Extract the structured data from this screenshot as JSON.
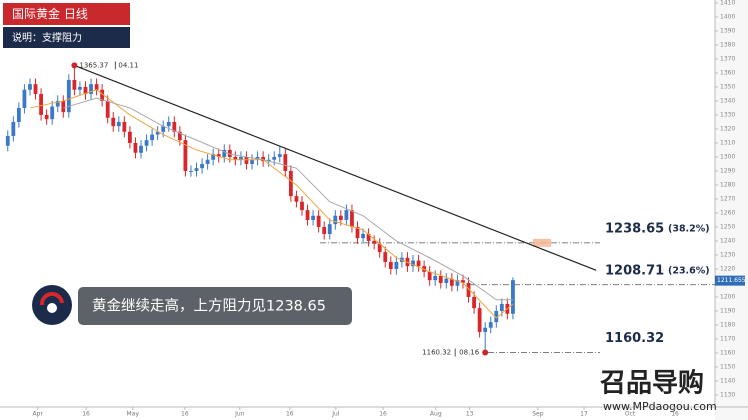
{
  "chart_data": {
    "type": "candlestick",
    "title": "国际黄金  日线",
    "subtitle": "说明：支撑阻力",
    "callout": "黄金继续走高，上方阻力见1238.65",
    "watermark": {
      "brand": "召品导购",
      "url": "www.MPdaogou.com"
    },
    "up_color": "#3a78c9",
    "down_color": "#d9262b",
    "open": [
      1308,
      1315,
      1325,
      1335,
      1348,
      1352,
      1345,
      1330,
      1327,
      1336,
      1340,
      1332,
      1355,
      1348,
      1350,
      1345,
      1352,
      1348,
      1340,
      1328,
      1322,
      1325,
      1318,
      1310,
      1303,
      1308,
      1312,
      1316,
      1318,
      1322,
      1325,
      1318,
      1312,
      1290,
      1290,
      1292,
      1295,
      1298,
      1302,
      1300,
      1305,
      1300,
      1298,
      1300,
      1295,
      1298,
      1300,
      1297,
      1298,
      1300,
      1302,
      1290,
      1272,
      1268,
      1262,
      1255,
      1258,
      1250,
      1245,
      1252,
      1258,
      1255,
      1262,
      1250,
      1242,
      1245,
      1240,
      1238,
      1232,
      1225,
      1220,
      1225,
      1228,
      1222,
      1226,
      1222,
      1218,
      1212,
      1215,
      1210,
      1213,
      1208,
      1212,
      1210,
      1200,
      1192,
      1175,
      1178,
      1182,
      1190,
      1195,
      1188
    ],
    "high": [
      1319,
      1329,
      1339,
      1352,
      1356,
      1356,
      1349,
      1334,
      1340,
      1344,
      1344,
      1359,
      1365.37,
      1354,
      1354,
      1356,
      1356,
      1352,
      1344,
      1332,
      1329,
      1329,
      1322,
      1314,
      1312,
      1316,
      1320,
      1322,
      1326,
      1329,
      1329,
      1322,
      1316,
      1294,
      1296,
      1299,
      1302,
      1306,
      1306,
      1309,
      1309,
      1304,
      1304,
      1304,
      1302,
      1304,
      1304,
      1302,
      1304,
      1308,
      1306,
      1294,
      1276,
      1272,
      1266,
      1262,
      1262,
      1254,
      1256,
      1262,
      1262,
      1266,
      1266,
      1254,
      1249,
      1249,
      1244,
      1242,
      1236,
      1229,
      1229,
      1232,
      1232,
      1230,
      1230,
      1226,
      1222,
      1219,
      1219,
      1217,
      1217,
      1216,
      1216,
      1214,
      1204,
      1196,
      1182,
      1186,
      1194,
      1199,
      1199,
      1214
    ],
    "low": [
      1304,
      1311,
      1321,
      1331,
      1344,
      1341,
      1326,
      1323,
      1323,
      1332,
      1328,
      1328,
      1344,
      1344,
      1341,
      1341,
      1344,
      1336,
      1324,
      1318,
      1318,
      1314,
      1306,
      1299,
      1299,
      1304,
      1308,
      1312,
      1314,
      1318,
      1314,
      1308,
      1286,
      1286,
      1286,
      1288,
      1291,
      1294,
      1296,
      1296,
      1296,
      1294,
      1294,
      1291,
      1291,
      1294,
      1293,
      1293,
      1294,
      1296,
      1286,
      1268,
      1264,
      1258,
      1251,
      1251,
      1246,
      1241,
      1241,
      1248,
      1251,
      1251,
      1246,
      1238,
      1238,
      1236,
      1234,
      1228,
      1221,
      1216,
      1216,
      1221,
      1218,
      1218,
      1218,
      1214,
      1208,
      1208,
      1206,
      1206,
      1204,
      1204,
      1206,
      1196,
      1188,
      1171,
      1160.32,
      1174,
      1178,
      1186,
      1184,
      1184
    ],
    "close": [
      1315,
      1325,
      1335,
      1348,
      1352,
      1345,
      1330,
      1327,
      1336,
      1340,
      1332,
      1355,
      1348,
      1350,
      1345,
      1352,
      1348,
      1340,
      1328,
      1322,
      1325,
      1318,
      1310,
      1303,
      1308,
      1312,
      1316,
      1318,
      1322,
      1325,
      1318,
      1312,
      1290,
      1290,
      1292,
      1295,
      1298,
      1302,
      1300,
      1305,
      1300,
      1298,
      1300,
      1295,
      1298,
      1300,
      1297,
      1298,
      1300,
      1302,
      1290,
      1272,
      1268,
      1262,
      1255,
      1258,
      1250,
      1245,
      1252,
      1258,
      1255,
      1262,
      1250,
      1242,
      1245,
      1240,
      1238,
      1232,
      1225,
      1220,
      1225,
      1228,
      1222,
      1226,
      1222,
      1218,
      1212,
      1215,
      1210,
      1213,
      1208,
      1212,
      1210,
      1200,
      1192,
      1175,
      1178,
      1182,
      1190,
      1195,
      1188,
      1212
    ],
    "series": [
      {
        "color": "#f0a53c",
        "x": [
          4,
          10,
          16,
          22,
          28,
          34,
          40,
          46,
          52,
          58,
          64,
          70,
          76,
          82,
          88,
          91
        ],
        "values": [
          1335,
          1340,
          1348,
          1330,
          1316,
          1305,
          1298,
          1298,
          1280,
          1255,
          1248,
          1228,
          1218,
          1210,
          1185,
          1195
        ]
      },
      {
        "color": "#a9a9a9",
        "x": [
          10,
          16,
          22,
          28,
          34,
          40,
          46,
          52,
          58,
          64,
          70,
          76,
          82,
          88,
          91
        ],
        "values": [
          1335,
          1342,
          1335,
          1322,
          1312,
          1302,
          1298,
          1292,
          1268,
          1258,
          1240,
          1228,
          1215,
          1198,
          1198
        ]
      },
      {
        "color": "#222222",
        "x": [
          12,
          106
        ],
        "values": [
          1365.37,
          1219
        ]
      }
    ],
    "high_point": {
      "value": 1365.37,
      "date": "04.11"
    },
    "low_point": {
      "value": 1160.32,
      "date": "08.16"
    },
    "levels": [
      {
        "value": 1238.65,
        "ratio": "(38.2%)"
      },
      {
        "value": 1208.71,
        "ratio": "(23.6%)"
      },
      {
        "value": 1160.32
      }
    ],
    "last_price": 1211.655,
    "xlim": [
      -1.4,
      127.4
    ],
    "xticks": [
      {
        "value": 5.4,
        "label": "Apr"
      },
      {
        "value": 14.1,
        "label": "16"
      },
      {
        "value": 22.5,
        "label": "May"
      },
      {
        "value": 31.9,
        "label": "16"
      },
      {
        "value": 41.8,
        "label": "Jun"
      },
      {
        "value": 50.8,
        "label": "16"
      },
      {
        "value": 59.1,
        "label": "Jul"
      },
      {
        "value": 67.6,
        "label": "16"
      },
      {
        "value": 77.1,
        "label": "Aug"
      },
      {
        "value": 83.2,
        "label": "13"
      },
      {
        "value": 95.5,
        "label": "Sep"
      },
      {
        "value": 103.8,
        "label": "17"
      },
      {
        "value": 112.1,
        "label": "Oct"
      },
      {
        "value": 120.2,
        "label": "16"
      }
    ],
    "ylim": [
      1121.4,
      1412.1
    ],
    "yticks": [
      1130,
      1140,
      1150,
      1160,
      1170,
      1180,
      1190,
      1200,
      1210,
      1220,
      1230,
      1240,
      1250,
      1260,
      1270,
      1280,
      1290,
      1300,
      1310,
      1320,
      1330,
      1340,
      1350,
      1360,
      1370,
      1380,
      1390,
      1400,
      1410
    ]
  }
}
